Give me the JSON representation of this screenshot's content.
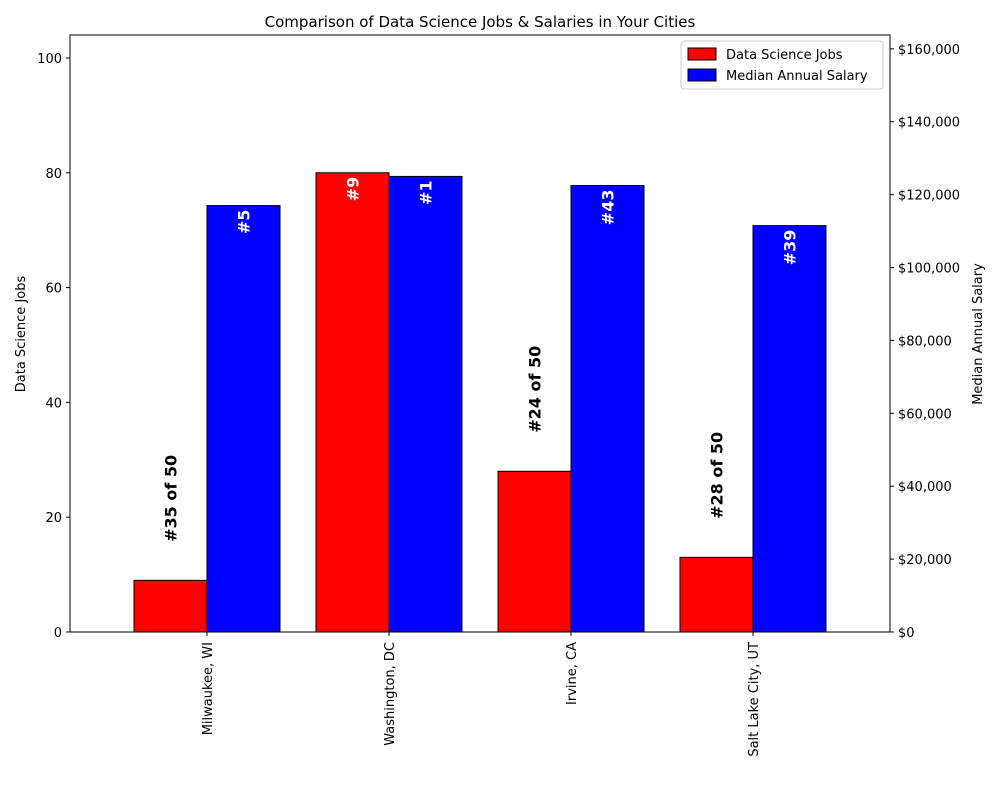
{
  "chart_data": {
    "type": "bar",
    "title": "Comparison of Data Science Jobs & Salaries in Your Cities",
    "categories": [
      "Milwaukee, WI",
      "Washington, DC",
      "Irvine, CA",
      "Salt Lake City, UT"
    ],
    "series": [
      {
        "name": "Data Science Jobs",
        "axis": "left",
        "color": "#ff0000",
        "values": [
          9,
          80,
          28,
          13
        ],
        "rank_labels": [
          "#35 of 50",
          "#9",
          "#24 of 50",
          "#28 of 50"
        ]
      },
      {
        "name": "Median Annual Salary",
        "axis": "right",
        "color": "#0000ff",
        "values": [
          117000,
          125000,
          122500,
          111500
        ],
        "rank_labels": [
          "#5",
          "#1",
          "#43",
          "#39"
        ]
      }
    ],
    "ylabel": "Data Science Jobs",
    "ylabel_color": "#ff0000",
    "ylim": [
      0,
      104
    ],
    "yticks": [
      0,
      20,
      40,
      60,
      80,
      100
    ],
    "y2label": "Median Annual Salary",
    "y2label_color": "#0000ff",
    "y2lim": [
      0,
      163800
    ],
    "y2ticks": [
      "$0",
      "$20,000",
      "$40,000",
      "$60,000",
      "$80,000",
      "$100,000",
      "$120,000",
      "$140,000",
      "$160,000"
    ],
    "y2tick_values": [
      0,
      20000,
      40000,
      60000,
      80000,
      100000,
      120000,
      140000,
      160000
    ],
    "grid": false,
    "legend_position": "top-right"
  }
}
